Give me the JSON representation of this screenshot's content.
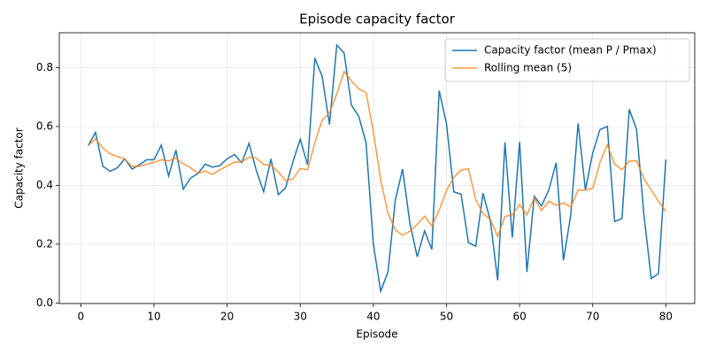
{
  "chart_data": {
    "type": "line",
    "title": "Episode capacity factor",
    "x_label": "Episode",
    "y_label": "Capacity factor",
    "x": [
      1,
      2,
      3,
      4,
      5,
      6,
      7,
      8,
      9,
      10,
      11,
      12,
      13,
      14,
      15,
      16,
      17,
      18,
      19,
      20,
      21,
      22,
      23,
      24,
      25,
      26,
      27,
      28,
      29,
      30,
      31,
      32,
      33,
      34,
      35,
      36,
      37,
      38,
      39,
      40,
      41,
      42,
      43,
      44,
      45,
      46,
      47,
      48,
      49,
      50,
      51,
      52,
      53,
      54,
      55,
      56,
      57,
      58,
      59,
      60,
      61,
      62,
      63,
      64,
      65,
      66,
      67,
      68,
      69,
      70,
      71,
      72,
      73,
      74,
      75,
      76,
      77,
      78,
      79,
      80
    ],
    "series": [
      {
        "name": "Capacity factor (mean P / Pmax)",
        "color": "#1f77b4",
        "values": [
          0.535,
          0.58,
          0.465,
          0.448,
          0.46,
          0.49,
          0.455,
          0.47,
          0.487,
          0.487,
          0.537,
          0.432,
          0.52,
          0.387,
          0.425,
          0.44,
          0.472,
          0.462,
          0.467,
          0.49,
          0.505,
          0.477,
          0.543,
          0.45,
          0.378,
          0.49,
          0.368,
          0.392,
          0.48,
          0.557,
          0.47,
          0.833,
          0.77,
          0.607,
          0.877,
          0.85,
          0.673,
          0.635,
          0.545,
          0.2,
          0.04,
          0.105,
          0.35,
          0.455,
          0.27,
          0.157,
          0.245,
          0.182,
          0.722,
          0.61,
          0.378,
          0.37,
          0.205,
          0.193,
          0.373,
          0.28,
          0.077,
          0.546,
          0.222,
          0.548,
          0.105,
          0.363,
          0.33,
          0.385,
          0.477,
          0.145,
          0.3,
          0.611,
          0.385,
          0.51,
          0.59,
          0.6,
          0.277,
          0.287,
          0.659,
          0.59,
          0.3,
          0.083,
          0.1,
          0.488
        ]
      },
      {
        "name": "Rolling mean (5)",
        "color": "#ff7f0e",
        "values": [
          0.535,
          0.558,
          0.527,
          0.507,
          0.498,
          0.489,
          0.464,
          0.465,
          0.472,
          0.478,
          0.487,
          0.483,
          0.493,
          0.473,
          0.46,
          0.441,
          0.449,
          0.437,
          0.453,
          0.466,
          0.479,
          0.48,
          0.496,
          0.493,
          0.471,
          0.468,
          0.446,
          0.416,
          0.422,
          0.457,
          0.453,
          0.546,
          0.622,
          0.647,
          0.711,
          0.787,
          0.755,
          0.728,
          0.716,
          0.581,
          0.419,
          0.305,
          0.248,
          0.23,
          0.244,
          0.267,
          0.295,
          0.262,
          0.315,
          0.383,
          0.427,
          0.452,
          0.457,
          0.351,
          0.304,
          0.284,
          0.226,
          0.294,
          0.3,
          0.335,
          0.3,
          0.357,
          0.314,
          0.346,
          0.332,
          0.34,
          0.327,
          0.384,
          0.384,
          0.39,
          0.479,
          0.539,
          0.472,
          0.453,
          0.483,
          0.483,
          0.423,
          0.384,
          0.346,
          0.312
        ]
      }
    ],
    "xlim": [
      -2.95,
      83.95
    ],
    "xticks": [
      0,
      10,
      20,
      30,
      40,
      50,
      60,
      70,
      80
    ],
    "ylim": [
      -0.002,
      0.919
    ],
    "yticks": [
      {
        "value": 0,
        "label": "0.0"
      },
      0.2,
      0.4,
      0.6,
      0.8
    ],
    "grid": true,
    "legend": "upper right"
  }
}
